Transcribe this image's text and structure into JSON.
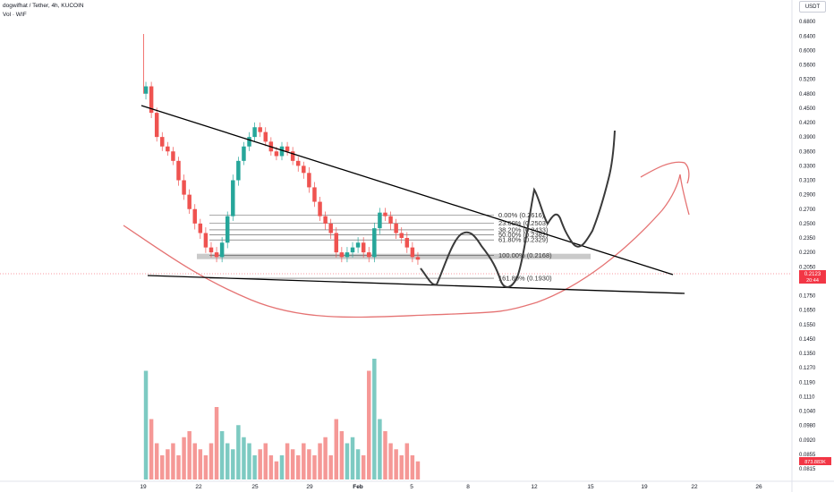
{
  "header": {
    "title": "dogwifhat / Tether, 4h, KUCOIN",
    "indicator": "Vol · WIF"
  },
  "currency_button": "USDT",
  "colors": {
    "up": "#26a69a",
    "down": "#ef5350",
    "trendline": "#000000",
    "sketch": "#3a3a3a",
    "curve": "#e57373",
    "price_badge": "#f23645",
    "fib_box": "#9e9e9e"
  },
  "price_badge": {
    "value": "0.2123",
    "countdown": "20:44"
  },
  "volume_badge": {
    "value": "873.883K"
  },
  "y_axis_ticks": [
    "0.7400",
    "0.6800",
    "0.6400",
    "0.6000",
    "0.5600",
    "0.5200",
    "0.4800",
    "0.4500",
    "0.4200",
    "0.3900",
    "0.3600",
    "0.3300",
    "0.3100",
    "0.2900",
    "0.2700",
    "0.2500",
    "0.2350",
    "0.2200",
    "0.2050",
    "0.1900",
    "0.1750",
    "0.1650",
    "0.1550",
    "0.1450",
    "0.1350",
    "0.1270",
    "0.1190",
    "0.1110",
    "0.1040",
    "0.0980",
    "0.0920",
    "0.0855",
    "0.0815"
  ],
  "x_axis_ticks": [
    "19",
    "22",
    "25",
    "29",
    "Feb",
    "5",
    "8",
    "12",
    "15",
    "19",
    "22",
    "26"
  ],
  "fib_levels": [
    {
      "label": "0.00% (0.2616)",
      "price": 0.2616
    },
    {
      "label": "23.60% (0.2503)",
      "price": 0.2503
    },
    {
      "label": "38.20% (0.2433)",
      "price": 0.2433
    },
    {
      "label": "50.00% (0.2382)",
      "price": 0.2382
    },
    {
      "label": "61.80% (0.2329)",
      "price": 0.2329
    },
    {
      "label": "100.00% (0.2168)",
      "price": 0.2168
    },
    {
      "label": "161.80% (0.1930)",
      "price": 0.193
    }
  ],
  "chart_data": {
    "type": "candlestick",
    "symbol": "dogwifhat / Tether",
    "interval": "4h",
    "exchange": "KUCOIN",
    "price_series_approx": [
      0.5,
      0.44,
      0.39,
      0.37,
      0.36,
      0.34,
      0.31,
      0.29,
      0.27,
      0.25,
      0.24,
      0.225,
      0.22,
      0.215,
      0.23,
      0.26,
      0.31,
      0.34,
      0.37,
      0.39,
      0.41,
      0.4,
      0.38,
      0.36,
      0.35,
      0.37,
      0.36,
      0.34,
      0.33,
      0.32,
      0.3,
      0.28,
      0.26,
      0.25,
      0.24,
      0.22,
      0.215,
      0.22,
      0.225,
      0.23,
      0.22,
      0.215,
      0.245,
      0.265,
      0.26,
      0.25,
      0.24,
      0.235,
      0.225,
      0.215,
      0.2123
    ],
    "volume_series_approx": [
      0.9,
      0.5,
      0.3,
      0.2,
      0.25,
      0.3,
      0.2,
      0.35,
      0.4,
      0.3,
      0.25,
      0.2,
      0.3,
      0.6,
      0.4,
      0.3,
      0.25,
      0.45,
      0.35,
      0.3,
      0.2,
      0.25,
      0.3,
      0.2,
      0.15,
      0.2,
      0.3,
      0.25,
      0.2,
      0.3,
      0.25,
      0.2,
      0.3,
      0.35,
      0.2,
      0.5,
      0.4,
      0.3,
      0.35,
      0.25,
      0.2,
      0.9,
      1.0,
      0.5,
      0.4,
      0.3,
      0.25,
      0.2,
      0.3,
      0.2,
      0.15
    ],
    "last_price": 0.2123,
    "y_scale": "log"
  }
}
